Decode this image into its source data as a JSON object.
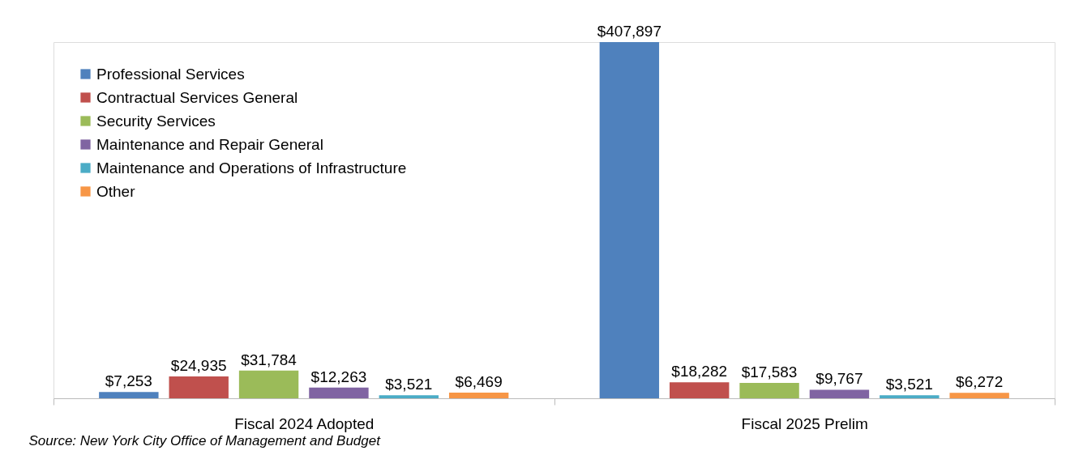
{
  "chart_data": {
    "type": "bar",
    "categories": [
      "Fiscal 2024 Adopted",
      "Fiscal 2025 Prelim"
    ],
    "series": [
      {
        "name": "Professional Services",
        "color": "#4f81bd",
        "values": [
          7253,
          407897
        ],
        "value_labels": [
          "$7,253",
          "$407,897"
        ]
      },
      {
        "name": "Contractual Services General",
        "color": "#c0504d",
        "values": [
          24935,
          18282
        ],
        "value_labels": [
          "$24,935",
          "$18,282"
        ]
      },
      {
        "name": "Security Services",
        "color": "#9bbb59",
        "values": [
          31784,
          17583
        ],
        "value_labels": [
          "$31,784",
          "$17,583"
        ]
      },
      {
        "name": "Maintenance and Repair General",
        "color": "#8064a2",
        "values": [
          12263,
          9767
        ],
        "value_labels": [
          "$12,263",
          "$9,767"
        ]
      },
      {
        "name": "Maintenance and Operations of Infrastructure",
        "color": "#4bacc6",
        "values": [
          3521,
          3521
        ],
        "value_labels": [
          "$3,521",
          "$3,521"
        ]
      },
      {
        "name": "Other",
        "color": "#f79646",
        "values": [
          6469,
          6272
        ],
        "value_labels": [
          "$6,469",
          "$6,272"
        ]
      }
    ],
    "legend": "top left",
    "annotations": [
      "Source: New York City Office of Management and Budget"
    ]
  }
}
